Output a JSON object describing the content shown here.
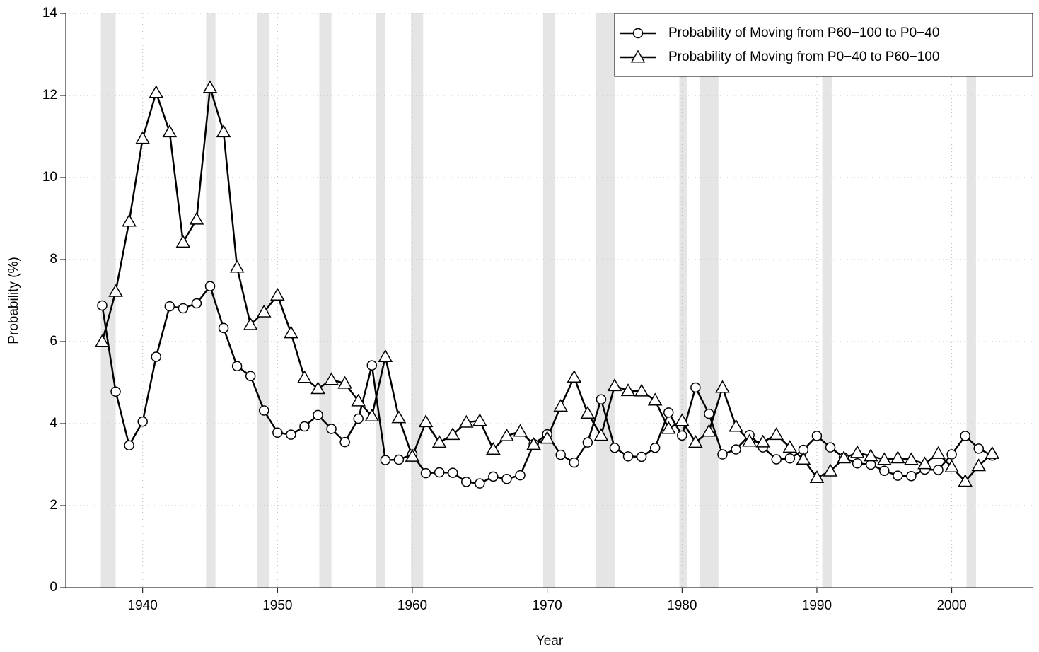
{
  "chart_data": {
    "type": "line",
    "xlabel": "Year",
    "ylabel": "Probability (%)",
    "x": [
      1937,
      1938,
      1939,
      1940,
      1941,
      1942,
      1943,
      1944,
      1945,
      1946,
      1947,
      1948,
      1949,
      1950,
      1951,
      1952,
      1953,
      1954,
      1955,
      1956,
      1957,
      1958,
      1959,
      1960,
      1961,
      1962,
      1963,
      1964,
      1965,
      1966,
      1967,
      1968,
      1969,
      1970,
      1971,
      1972,
      1973,
      1974,
      1975,
      1976,
      1977,
      1978,
      1979,
      1980,
      1981,
      1982,
      1983,
      1984,
      1985,
      1986,
      1987,
      1988,
      1989,
      1990,
      1991,
      1992,
      1993,
      1994,
      1995,
      1996,
      1997,
      1998,
      1999,
      2000,
      2001,
      2002,
      2003
    ],
    "series": [
      {
        "name": "Probability of Moving from P60−100 to P0−40",
        "color": "#000000",
        "marker": "circle",
        "values": [
          6.88,
          4.78,
          3.47,
          4.05,
          5.63,
          6.86,
          6.81,
          6.93,
          7.35,
          6.33,
          5.4,
          5.16,
          4.32,
          3.78,
          3.73,
          3.93,
          4.21,
          3.87,
          3.55,
          4.12,
          5.42,
          3.11,
          3.12,
          3.25,
          2.79,
          2.81,
          2.8,
          2.58,
          2.54,
          2.71,
          2.65,
          2.74,
          3.5,
          3.74,
          3.24,
          3.05,
          3.54,
          4.59,
          3.41,
          3.2,
          3.19,
          3.41,
          4.27,
          3.71,
          4.88,
          4.24,
          3.25,
          3.37,
          3.72,
          3.42,
          3.13,
          3.15,
          3.36,
          3.7,
          3.42,
          3.17,
          3.03,
          3.0,
          2.85,
          2.73,
          2.72,
          2.88,
          2.87,
          3.25,
          3.7,
          3.39,
          3.22
        ]
      },
      {
        "name": "Probability of Moving from P0−40 to P60−100",
        "color": "#000000",
        "marker": "triangle",
        "values": [
          6.0,
          7.22,
          8.93,
          10.95,
          12.07,
          11.11,
          8.42,
          8.98,
          12.19,
          11.11,
          7.81,
          6.41,
          6.72,
          7.13,
          6.21,
          5.12,
          4.85,
          5.07,
          4.98,
          4.55,
          4.18,
          5.63,
          4.14,
          3.2,
          4.04,
          3.54,
          3.73,
          4.03,
          4.07,
          3.37,
          3.7,
          3.81,
          3.49,
          3.64,
          4.42,
          5.13,
          4.25,
          3.71,
          4.92,
          4.8,
          4.79,
          4.57,
          3.88,
          4.07,
          3.54,
          3.81,
          4.88,
          3.93,
          3.57,
          3.55,
          3.73,
          3.42,
          3.13,
          2.68,
          2.84,
          3.16,
          3.29,
          3.21,
          3.12,
          3.16,
          3.12,
          3.02,
          3.27,
          2.94,
          2.59,
          2.97,
          3.27
        ]
      }
    ],
    "recessions": [
      [
        1936.9,
        1938.0
      ],
      [
        1944.7,
        1945.4
      ],
      [
        1948.5,
        1949.4
      ],
      [
        1953.1,
        1954.0
      ],
      [
        1957.3,
        1958.0
      ],
      [
        1959.9,
        1960.8
      ],
      [
        1969.7,
        1970.6
      ],
      [
        1973.6,
        1975.0
      ],
      [
        1979.8,
        1980.4
      ],
      [
        1981.3,
        1982.7
      ],
      [
        1990.4,
        1991.1
      ],
      [
        2001.1,
        2001.8
      ]
    ],
    "recession_color": "#e5e5e5",
    "xlim": [
      1934.3,
      2006.0
    ],
    "ylim": [
      0,
      14
    ],
    "xticks": [
      1940,
      1950,
      1960,
      1970,
      1980,
      1990,
      2000
    ],
    "yticks": [
      0,
      2,
      4,
      6,
      8,
      10,
      12,
      14
    ],
    "grid": true,
    "legend": "top-right"
  }
}
